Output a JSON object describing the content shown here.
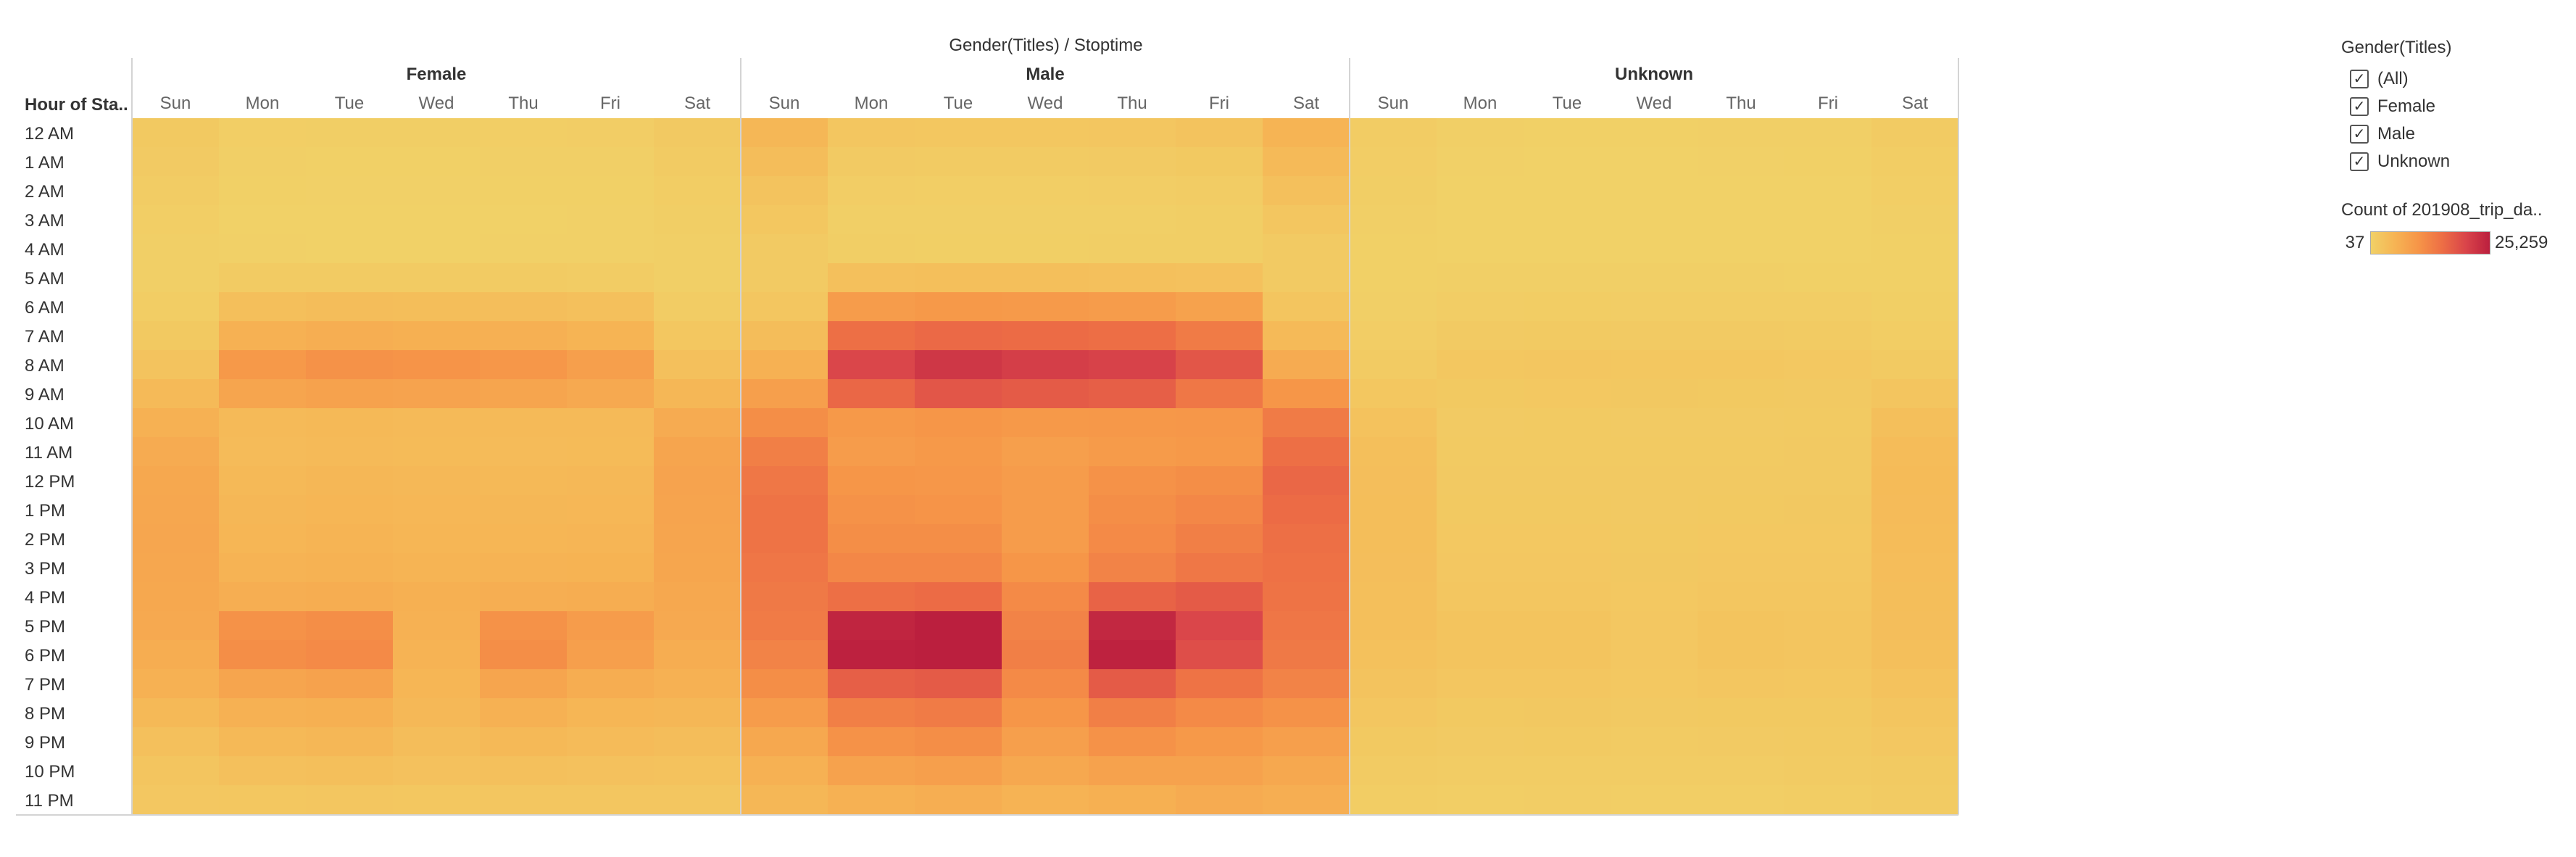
{
  "chart_data": {
    "type": "heatmap",
    "title": "Gender(Titles) / Stoptime",
    "row_header": "Hour of Sta..",
    "groups": [
      "Female",
      "Male",
      "Unknown"
    ],
    "days": [
      "Sun",
      "Mon",
      "Tue",
      "Wed",
      "Thu",
      "Fri",
      "Sat"
    ],
    "hours": [
      "12 AM",
      "1 AM",
      "2 AM",
      "3 AM",
      "4 AM",
      "5 AM",
      "6 AM",
      "7 AM",
      "8 AM",
      "9 AM",
      "10 AM",
      "11 AM",
      "12 PM",
      "1 PM",
      "2 PM",
      "3 PM",
      "4 PM",
      "5 PM",
      "6 PM",
      "7 PM",
      "8 PM",
      "9 PM",
      "10 PM",
      "11 PM"
    ],
    "color_min": 37,
    "color_max": 25259,
    "color_scale": [
      "#f1d167",
      "#f6b454",
      "#f69548",
      "#ed6e45",
      "#d9444a",
      "#bb1f3e"
    ],
    "values": {
      "Female": [
        [
          1500,
          600,
          500,
          500,
          600,
          700,
          1400
        ],
        [
          1200,
          300,
          250,
          250,
          300,
          350,
          1000
        ],
        [
          900,
          200,
          150,
          150,
          200,
          250,
          800
        ],
        [
          600,
          120,
          100,
          100,
          120,
          150,
          500
        ],
        [
          400,
          150,
          120,
          120,
          150,
          150,
          300
        ],
        [
          400,
          1000,
          1000,
          1000,
          1000,
          900,
          400
        ],
        [
          800,
          3200,
          3500,
          3400,
          3300,
          3000,
          900
        ],
        [
          1500,
          5500,
          6000,
          5800,
          5700,
          5000,
          1800
        ],
        [
          2500,
          9500,
          10500,
          10200,
          9800,
          8500,
          3000
        ],
        [
          4000,
          7500,
          8000,
          7800,
          7500,
          6800,
          4500
        ],
        [
          5500,
          4000,
          4200,
          4100,
          4000,
          4000,
          6500
        ],
        [
          6500,
          3800,
          4000,
          3900,
          3800,
          3900,
          7500
        ],
        [
          7000,
          4200,
          4500,
          4300,
          4200,
          4300,
          7800
        ],
        [
          7200,
          4500,
          4800,
          4600,
          4500,
          4600,
          7700
        ],
        [
          7300,
          4800,
          5000,
          4800,
          4800,
          4900,
          7600
        ],
        [
          7200,
          5200,
          5400,
          5100,
          5200,
          5300,
          7400
        ],
        [
          7000,
          6000,
          6300,
          5800,
          6100,
          6200,
          7000
        ],
        [
          6800,
          10500,
          11000,
          5500,
          10500,
          9000,
          6800
        ],
        [
          6300,
          11000,
          11500,
          5200,
          11000,
          8500,
          6200
        ],
        [
          5500,
          7500,
          8000,
          4800,
          7500,
          6200,
          5500
        ],
        [
          4200,
          5500,
          5800,
          4300,
          5500,
          4700,
          4500
        ],
        [
          3000,
          4200,
          4500,
          3500,
          4200,
          3800,
          3500
        ],
        [
          2200,
          3000,
          3200,
          2800,
          3000,
          2800,
          2600
        ],
        [
          1700,
          1800,
          2000,
          1800,
          1900,
          2000,
          2000
        ]
      ],
      "Male": [
        [
          4500,
          2000,
          1800,
          1800,
          2000,
          2500,
          5000
        ],
        [
          3500,
          1200,
          1000,
          1000,
          1200,
          1500,
          4000
        ],
        [
          2500,
          700,
          600,
          600,
          700,
          900,
          3000
        ],
        [
          1800,
          400,
          350,
          350,
          400,
          500,
          2000
        ],
        [
          1200,
          500,
          450,
          450,
          500,
          500,
          1200
        ],
        [
          1200,
          3000,
          3200,
          3100,
          3000,
          2800,
          1200
        ],
        [
          2000,
          9000,
          9500,
          9300,
          9000,
          8000,
          2200
        ],
        [
          3500,
          15000,
          15800,
          15500,
          15200,
          13500,
          4000
        ],
        [
          5500,
          20000,
          22000,
          21000,
          20500,
          18000,
          6500
        ],
        [
          8500,
          16000,
          18000,
          17500,
          17000,
          14000,
          10000
        ],
        [
          11000,
          9500,
          10000,
          9500,
          9700,
          9800,
          13500
        ],
        [
          13000,
          9000,
          9500,
          8500,
          9200,
          9500,
          15000
        ],
        [
          14000,
          10000,
          9800,
          9000,
          10500,
          11000,
          16000
        ],
        [
          14500,
          10500,
          10300,
          9000,
          11000,
          12000,
          15500
        ],
        [
          14500,
          11000,
          11000,
          9000,
          11500,
          13000,
          15000
        ],
        [
          14200,
          12000,
          12000,
          10000,
          12500,
          14000,
          14800
        ],
        [
          13800,
          15000,
          15500,
          11500,
          16500,
          17500,
          14500
        ],
        [
          13500,
          24500,
          25259,
          12500,
          24000,
          20000,
          14200
        ],
        [
          12500,
          25000,
          25259,
          13000,
          24800,
          19000,
          13800
        ],
        [
          11000,
          17000,
          17500,
          11500,
          17500,
          14500,
          12500
        ],
        [
          9000,
          13000,
          13500,
          10000,
          13000,
          11500,
          10500
        ],
        [
          7000,
          10500,
          11000,
          8500,
          10500,
          9500,
          8500
        ],
        [
          5500,
          8000,
          8500,
          7000,
          8000,
          8000,
          7000
        ],
        [
          4500,
          5500,
          6000,
          5200,
          5800,
          6500,
          6000
        ]
      ],
      "Unknown": [
        [
          900,
          300,
          250,
          250,
          300,
          400,
          1000
        ],
        [
          700,
          150,
          120,
          120,
          150,
          200,
          800
        ],
        [
          500,
          100,
          80,
          80,
          100,
          120,
          600
        ],
        [
          350,
          60,
          50,
          50,
          60,
          80,
          400
        ],
        [
          250,
          70,
          60,
          60,
          70,
          70,
          250
        ],
        [
          250,
          300,
          300,
          300,
          300,
          280,
          250
        ],
        [
          400,
          700,
          720,
          700,
          700,
          650,
          450
        ],
        [
          700,
          1200,
          1250,
          1200,
          1200,
          1100,
          800
        ],
        [
          1100,
          1800,
          1900,
          1850,
          1800,
          1650,
          1300
        ],
        [
          1800,
          1500,
          1600,
          1550,
          1500,
          1400,
          2200
        ],
        [
          2600,
          1200,
          1250,
          1200,
          1200,
          1250,
          3200
        ],
        [
          3100,
          1300,
          1300,
          1250,
          1300,
          1350,
          3700
        ],
        [
          3300,
          1400,
          1400,
          1350,
          1400,
          1450,
          3900
        ],
        [
          3400,
          1500,
          1500,
          1400,
          1500,
          1550,
          3800
        ],
        [
          3400,
          1600,
          1600,
          1500,
          1600,
          1650,
          3700
        ],
        [
          3300,
          1700,
          1700,
          1550,
          1700,
          1750,
          3600
        ],
        [
          3200,
          1900,
          1900,
          1650,
          1900,
          1950,
          3400
        ],
        [
          3100,
          2300,
          2350,
          1750,
          2350,
          2200,
          3300
        ],
        [
          2900,
          2300,
          2350,
          1700,
          2350,
          2100,
          3100
        ],
        [
          2500,
          1900,
          1950,
          1600,
          1950,
          1800,
          2700
        ],
        [
          2000,
          1500,
          1550,
          1400,
          1500,
          1500,
          2200
        ],
        [
          1500,
          1200,
          1250,
          1150,
          1200,
          1250,
          1700
        ],
        [
          1100,
          900,
          950,
          900,
          900,
          1000,
          1300
        ],
        [
          800,
          600,
          650,
          600,
          620,
          750,
          1000
        ]
      ]
    }
  },
  "legend": {
    "filter_title": "Gender(Titles)",
    "filter_items": [
      {
        "label": "(All)",
        "checked": true
      },
      {
        "label": "Female",
        "checked": true
      },
      {
        "label": "Male",
        "checked": true
      },
      {
        "label": "Unknown",
        "checked": true
      }
    ],
    "color_title": "Count of 201908_trip_da..",
    "color_min_label": "37",
    "color_max_label": "25,259"
  }
}
